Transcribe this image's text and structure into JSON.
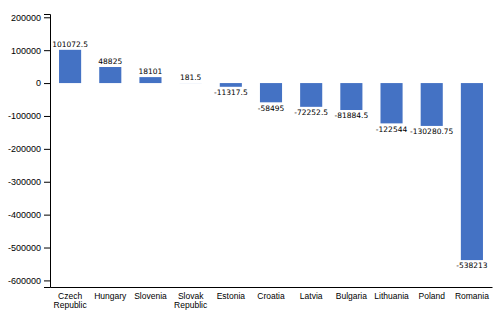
{
  "chart_data": {
    "type": "bar",
    "categories": [
      "Czech\nRepublic",
      "Hungary",
      "Slovenia",
      "Slovak\nRepublic",
      "Estonia",
      "Croatia",
      "Latvia",
      "Bulgaria",
      "Lithuania",
      "Poland",
      "Romania"
    ],
    "values": [
      101072.5,
      48825,
      18101,
      181.5,
      -11317.5,
      -58495,
      -72252.5,
      -81884.5,
      -122544,
      -130280.75,
      -538213
    ],
    "color": "#4472C4",
    "ylim": [
      -620000,
      210000
    ],
    "yticks": [
      200000,
      100000,
      0,
      -100000,
      -200000,
      -300000,
      -400000,
      -500000,
      -600000
    ],
    "grid": false,
    "data_labels": true
  }
}
